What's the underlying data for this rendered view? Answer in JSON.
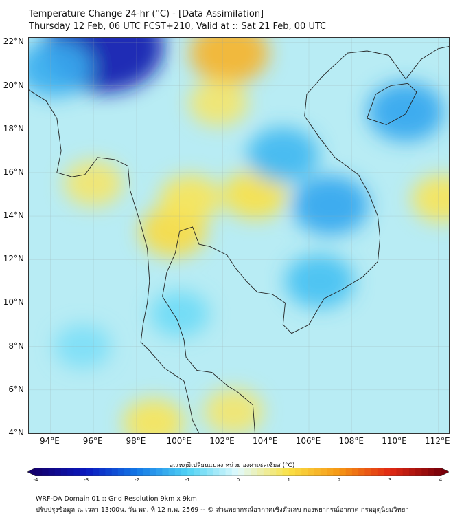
{
  "title": {
    "line1": "Temperature Change 24-hr (°C) - [Data Assimilation]",
    "line2": "Thursday 12 Feb, 06 UTC FCST+210, Valid at :: Sat 21 Feb, 00 UTC"
  },
  "map": {
    "lon_min": 93,
    "lon_max": 112.5,
    "lat_min": 4,
    "lat_max": 22.2,
    "lat_labels": [
      "22°N",
      "20°N",
      "18°N",
      "16°N",
      "14°N",
      "12°N",
      "10°N",
      "8°N",
      "6°N",
      "4°N"
    ],
    "lat_values": [
      22,
      20,
      18,
      16,
      14,
      12,
      10,
      8,
      6,
      4
    ],
    "lon_labels": [
      "94°E",
      "96°E",
      "98°E",
      "100°E",
      "102°E",
      "104°E",
      "106°E",
      "108°E",
      "110°E",
      "112°E"
    ],
    "lon_values": [
      94,
      96,
      98,
      100,
      102,
      104,
      106,
      108,
      110,
      112
    ],
    "background_color": "#b8ecf4",
    "anomalies": [
      {
        "lon": 96.5,
        "lat": 21.8,
        "value": -3.2
      },
      {
        "lon": 94.2,
        "lat": 20.8,
        "value": -1.4
      },
      {
        "lon": 102.3,
        "lat": 21.5,
        "value": 1.6
      },
      {
        "lon": 101.8,
        "lat": 19.2,
        "value": 0.8
      },
      {
        "lon": 99.7,
        "lat": 13.3,
        "value": 1.1
      },
      {
        "lon": 100.5,
        "lat": 14.8,
        "value": 0.9
      },
      {
        "lon": 103.5,
        "lat": 15.0,
        "value": 1.0
      },
      {
        "lon": 96.0,
        "lat": 15.5,
        "value": 0.8
      },
      {
        "lon": 104.8,
        "lat": 16.8,
        "value": -1.3
      },
      {
        "lon": 107.0,
        "lat": 14.5,
        "value": -1.5
      },
      {
        "lon": 110.5,
        "lat": 18.8,
        "value": -1.5
      },
      {
        "lon": 106.5,
        "lat": 11.0,
        "value": -1.2
      },
      {
        "lon": 98.8,
        "lat": 4.5,
        "value": 0.9
      },
      {
        "lon": 102.5,
        "lat": 5.0,
        "value": 0.8
      },
      {
        "lon": 112.2,
        "lat": 14.8,
        "value": 0.9
      },
      {
        "lon": 95.5,
        "lat": 8.0,
        "value": -0.7
      },
      {
        "lon": 100.0,
        "lat": 9.5,
        "value": -0.8
      }
    ]
  },
  "colorbar": {
    "label": "อุณหภูมิเปลี่ยนแปลง หน่วย องศาเซลเซียส (°C)",
    "min": -4,
    "max": 4,
    "tick_labels": [
      "-4",
      "-3",
      "-2",
      "-1",
      "0",
      "1",
      "2",
      "3",
      "4"
    ],
    "tick_values": [
      -4,
      -3,
      -2,
      -1,
      0,
      1,
      2,
      3,
      4
    ]
  },
  "footer": {
    "line1": "WRF-DA Domain 01 :: Grid Resolution 9km x 9km",
    "line2": "ปรับปรุงข้อมูล ณ เวลา 13:00น. วัน พฤ. ที่ 12 ก.พ. 2569 -- © ส่วนพยากรณ์อากาศเชิงตัวเลข กองพยากรณ์อากาศ กรมอุตุนิยมวิทยา"
  }
}
